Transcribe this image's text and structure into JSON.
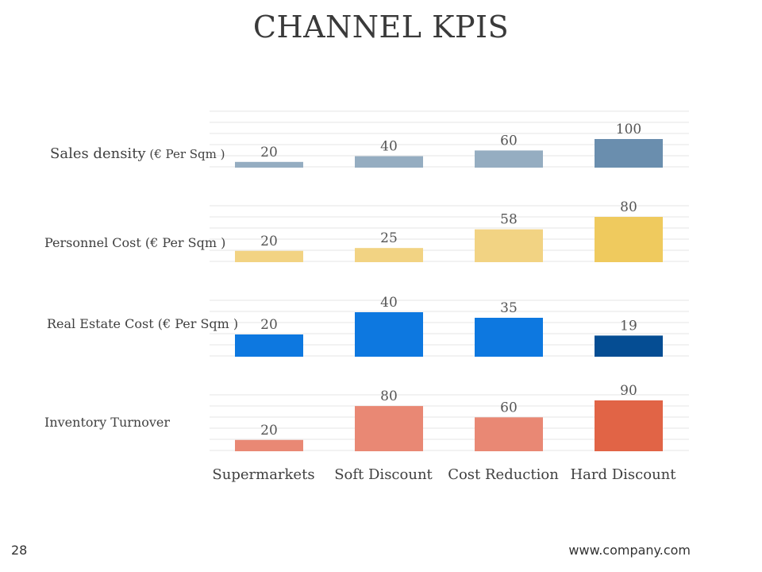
{
  "title": "CHANNEL KPIS",
  "page_number": "28",
  "footer_url": "www.company.com",
  "chart_data": {
    "type": "bar",
    "title": "CHANNEL KPIS",
    "categories": [
      "Supermarkets",
      "Soft Discount",
      "Cost Reduction",
      "Hard Discount"
    ],
    "series": [
      {
        "name": "Sales density",
        "name_suffix": "(€ Per Sqm )",
        "values": [
          20,
          40,
          60,
          100
        ],
        "ylim": [
          0,
          100
        ],
        "colors": [
          "#95adc1",
          "#95adc1",
          "#95adc1",
          "#6a8eae"
        ]
      },
      {
        "name": "Personnel Cost (€ Per Sqm )",
        "name_suffix": "",
        "values": [
          20,
          25,
          58,
          80
        ],
        "ylim": [
          0,
          80
        ],
        "colors": [
          "#f2d383",
          "#f2d383",
          "#f2d383",
          "#efca5e"
        ]
      },
      {
        "name": "Real Estate Cost (€ Per Sqm )",
        "name_suffix": "",
        "values": [
          20,
          40,
          35,
          19
        ],
        "ylim": [
          0,
          40
        ],
        "colors": [
          "#0d78e0",
          "#0d78e0",
          "#0d78e0",
          "#054d93"
        ]
      },
      {
        "name": "Inventory Turnover",
        "name_suffix": "",
        "values": [
          20,
          80,
          60,
          90
        ],
        "ylim": [
          0,
          90
        ],
        "colors": [
          "#e98874",
          "#e98874",
          "#e98874",
          "#e16446"
        ]
      }
    ]
  }
}
